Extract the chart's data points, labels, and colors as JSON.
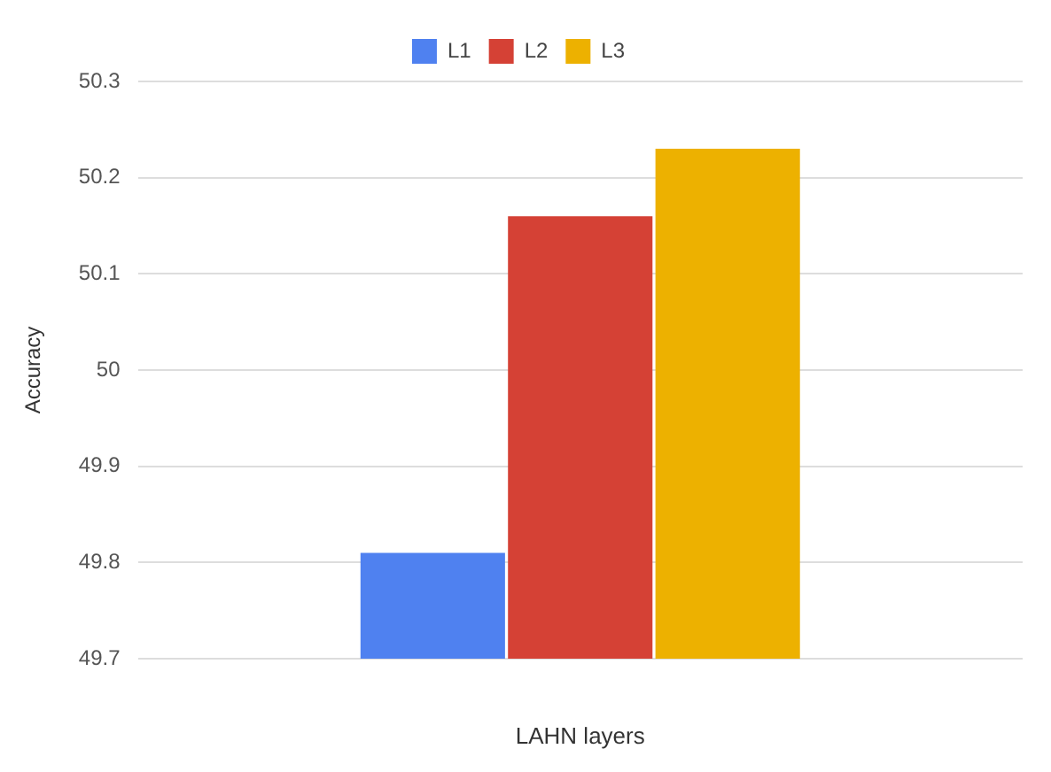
{
  "chart_data": {
    "type": "bar",
    "xlabel": "LAHN layers",
    "ylabel": "Accuracy",
    "categories": [
      null
    ],
    "series": [
      {
        "name": "L1",
        "color": "#4f81f0",
        "values": [
          49.81
        ]
      },
      {
        "name": "L2",
        "color": "#d54135",
        "values": [
          50.16
        ]
      },
      {
        "name": "L3",
        "color": "#edb100",
        "values": [
          50.23
        ]
      }
    ],
    "ylim": [
      49.7,
      50.3
    ],
    "yticks": [
      49.7,
      49.8,
      49.9,
      50,
      50.1,
      50.2,
      50.3
    ],
    "grid": "y",
    "legend": "top"
  }
}
